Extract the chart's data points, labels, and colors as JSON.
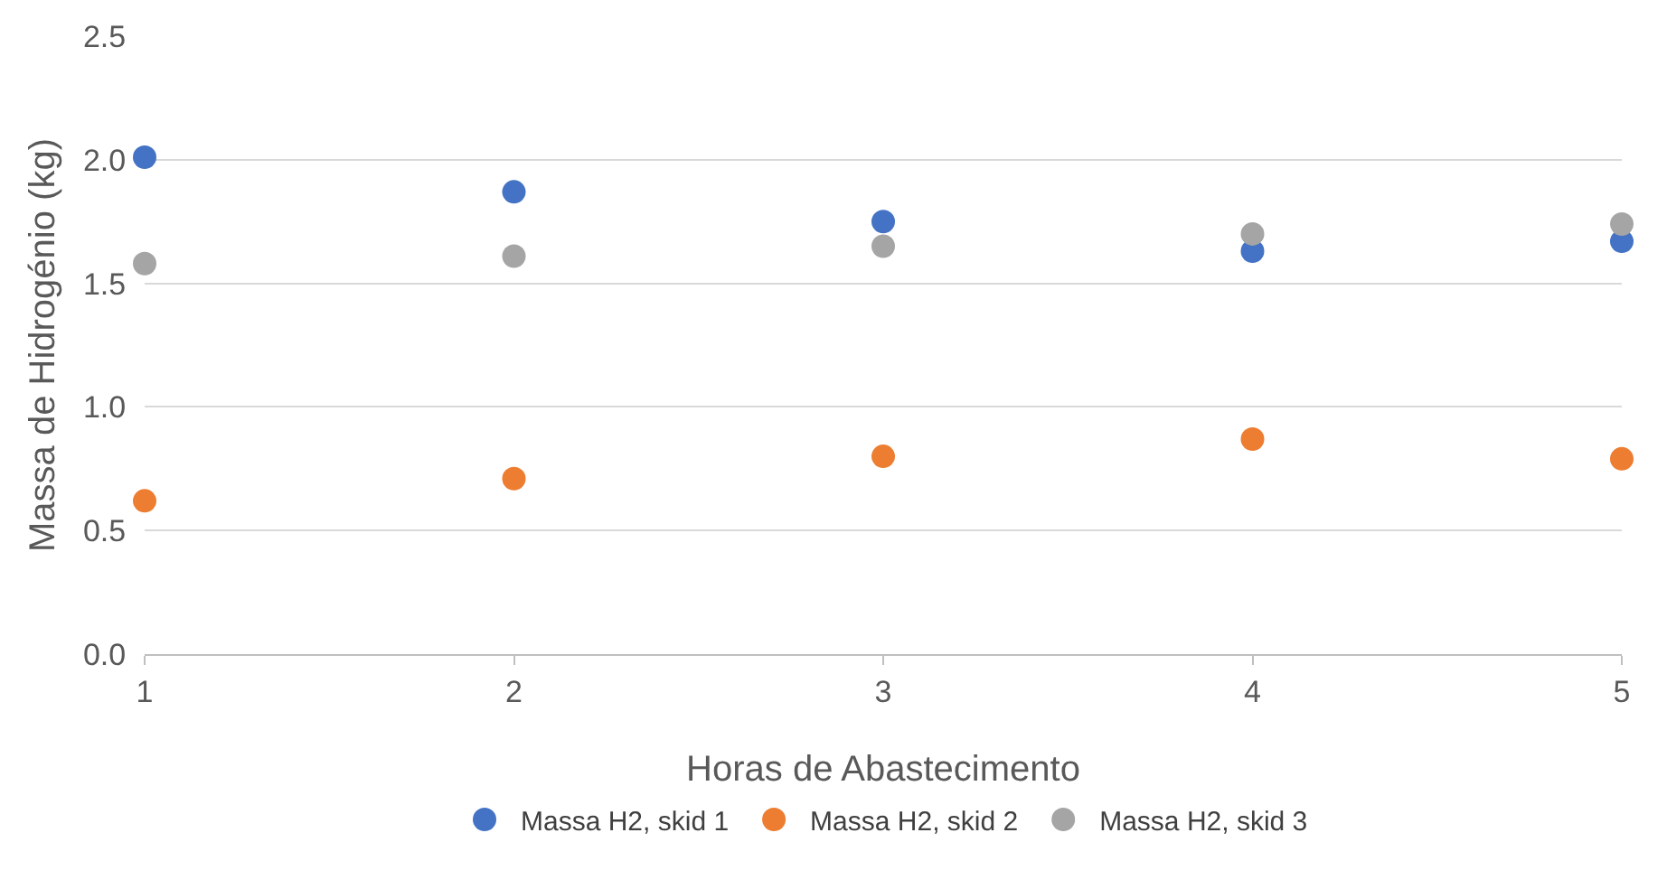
{
  "chart_data": {
    "type": "scatter",
    "xlabel": "Horas de Abastecimento",
    "ylabel": "Massa de Hidrogénio (kg)",
    "x": [
      1,
      2,
      3,
      4,
      5
    ],
    "series": [
      {
        "name": "Massa H2, skid 1",
        "color": "#4472c4",
        "values": [
          2.01,
          1.87,
          1.75,
          1.63,
          1.67
        ]
      },
      {
        "name": "Massa H2, skid 2",
        "color": "#ed7d31",
        "values": [
          0.62,
          0.71,
          0.8,
          0.87,
          0.79
        ]
      },
      {
        "name": "Massa H2, skid 3",
        "color": "#a5a5a5",
        "values": [
          1.58,
          1.61,
          1.65,
          1.7,
          1.74
        ]
      }
    ],
    "xlim": [
      1,
      5
    ],
    "xticks": [
      1,
      2,
      3,
      4,
      5
    ],
    "ylim": [
      0,
      2.5
    ],
    "yticks": [
      {
        "value": 0,
        "label": "0.0"
      },
      {
        "value": 0.5,
        "label": "0.5"
      },
      {
        "value": 1,
        "label": "1.0"
      },
      {
        "value": 1.5,
        "label": "1.5"
      },
      {
        "value": 2,
        "label": "2.0"
      },
      {
        "value": 2.5,
        "label": "2.5"
      }
    ],
    "grid": "y",
    "legend": "bottom",
    "marker": "circle"
  }
}
